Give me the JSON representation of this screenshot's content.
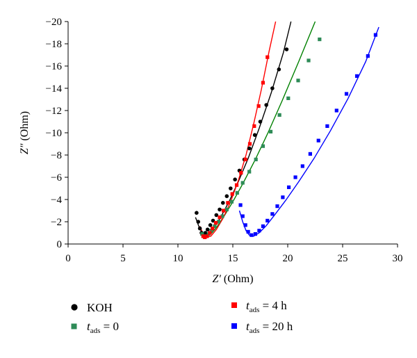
{
  "chart_data": {
    "type": "scatter",
    "xlabel_symbol": "Z′",
    "xlabel_unit": " (Ohm)",
    "ylabel_symbol": "Z″",
    "ylabel_unit": " (Ohm)",
    "xlim": [
      0,
      30
    ],
    "ylim": [
      0,
      -20
    ],
    "x_ticks": [
      "0",
      "5",
      "10",
      "15",
      "20",
      "25",
      "30"
    ],
    "y_ticks": [
      "0",
      "−2",
      "−4",
      "−6",
      "−8",
      "−10",
      "−12",
      "−14",
      "−16",
      "−18",
      "−20"
    ],
    "grid": false,
    "legend_position": "bottom",
    "series": [
      {
        "name": "KOH",
        "marker": "circle",
        "color": "#000000",
        "x": [
          11.7,
          11.85,
          12.0,
          12.15,
          12.3,
          12.5,
          12.7,
          12.95,
          13.2,
          13.5,
          13.8,
          14.1,
          14.45,
          14.8,
          15.2,
          15.6,
          16.05,
          16.5,
          17.0,
          17.5,
          18.05,
          18.6,
          19.2,
          19.9
        ],
        "y": [
          -2.8,
          -2.0,
          -1.4,
          -1.0,
          -0.9,
          -1.0,
          -1.3,
          -1.7,
          -2.1,
          -2.6,
          -3.1,
          -3.7,
          -4.3,
          -5.0,
          -5.8,
          -6.6,
          -7.6,
          -8.6,
          -9.8,
          -11.0,
          -12.5,
          -14.0,
          -15.7,
          -17.5
        ]
      },
      {
        "name_symbol": "t",
        "name_sub": "ads",
        "name_value": " = 0",
        "marker": "square",
        "color": "#2e8b57",
        "x": [
          12.2,
          12.35,
          12.55,
          12.8,
          13.05,
          13.35,
          13.7,
          14.05,
          14.45,
          14.9,
          15.4,
          15.9,
          16.5,
          17.1,
          17.75,
          18.45,
          19.25,
          20.05,
          20.95,
          21.9,
          22.9
        ],
        "y": [
          -0.9,
          -0.7,
          -0.7,
          -0.9,
          -1.2,
          -1.6,
          -2.0,
          -2.5,
          -3.1,
          -3.8,
          -4.6,
          -5.5,
          -6.5,
          -7.6,
          -8.8,
          -10.1,
          -11.6,
          -13.1,
          -14.7,
          -16.5,
          -18.4
        ]
      },
      {
        "name_symbol": "t",
        "name_sub": "ads",
        "name_value": " = 4 h",
        "marker": "square",
        "color": "#ff0000",
        "x": [
          12.3,
          12.45,
          12.65,
          12.9,
          13.15,
          13.45,
          13.8,
          14.15,
          14.55,
          14.95,
          15.35,
          15.75,
          16.15,
          16.55,
          16.95,
          17.35,
          17.75,
          18.15
        ],
        "y": [
          -0.7,
          -0.6,
          -0.7,
          -1.0,
          -1.4,
          -1.9,
          -2.4,
          -3.0,
          -3.7,
          -4.5,
          -5.3,
          -6.4,
          -7.6,
          -9.0,
          -10.6,
          -12.4,
          -14.5,
          -16.8
        ]
      },
      {
        "name_symbol": "t",
        "name_sub": "ads",
        "name_value": " = 20 h",
        "marker": "square",
        "color": "#0000ff",
        "x": [
          15.7,
          15.9,
          16.15,
          16.4,
          16.7,
          17.05,
          17.4,
          17.75,
          18.15,
          18.6,
          19.05,
          19.55,
          20.1,
          20.7,
          21.35,
          22.05,
          22.8,
          23.6,
          24.45,
          25.35,
          26.3,
          27.3,
          28.0
        ],
        "y": [
          -3.5,
          -2.5,
          -1.7,
          -1.1,
          -0.8,
          -0.9,
          -1.2,
          -1.6,
          -2.1,
          -2.7,
          -3.4,
          -4.2,
          -5.1,
          -6.0,
          -7.0,
          -8.1,
          -9.3,
          -10.6,
          -12.0,
          -13.5,
          -15.1,
          -16.9,
          -18.8
        ]
      }
    ],
    "fits": [
      {
        "color": "#000000",
        "x": [
          11.6,
          11.9,
          12.2,
          12.5,
          12.9,
          13.4,
          14.0,
          14.7,
          15.5,
          16.4,
          17.4,
          18.5,
          19.6,
          20.3
        ],
        "y": [
          -2.4,
          -1.6,
          -1.0,
          -0.8,
          -1.0,
          -1.6,
          -2.6,
          -3.9,
          -5.6,
          -7.7,
          -10.4,
          -13.6,
          -17.2,
          -20.0
        ]
      },
      {
        "color": "#008000",
        "x": [
          12.1,
          12.4,
          12.7,
          13.1,
          13.6,
          14.2,
          15.0,
          15.9,
          17.0,
          18.2,
          19.5,
          21.0,
          22.5
        ],
        "y": [
          -1.1,
          -0.7,
          -0.7,
          -1.0,
          -1.6,
          -2.5,
          -3.8,
          -5.4,
          -7.5,
          -10.0,
          -12.9,
          -16.4,
          -20.0
        ]
      },
      {
        "color": "#ff0000",
        "x": [
          12.0,
          12.3,
          12.6,
          13.0,
          13.5,
          14.1,
          14.8,
          15.5,
          16.2,
          16.9,
          17.6,
          18.3,
          18.9
        ],
        "y": [
          -1.6,
          -0.9,
          -0.6,
          -0.7,
          -1.3,
          -2.3,
          -3.8,
          -5.7,
          -8.0,
          -10.8,
          -13.9,
          -17.3,
          -20.0
        ]
      },
      {
        "color": "#0000ff",
        "x": [
          15.6,
          15.9,
          16.2,
          16.5,
          16.9,
          17.4,
          18.0,
          18.8,
          19.8,
          21.0,
          22.4,
          23.9,
          25.5,
          27.1,
          28.3
        ],
        "y": [
          -3.0,
          -2.0,
          -1.2,
          -0.8,
          -0.7,
          -1.0,
          -1.6,
          -2.6,
          -3.9,
          -5.6,
          -7.7,
          -10.2,
          -13.1,
          -16.4,
          -19.5
        ]
      }
    ]
  }
}
